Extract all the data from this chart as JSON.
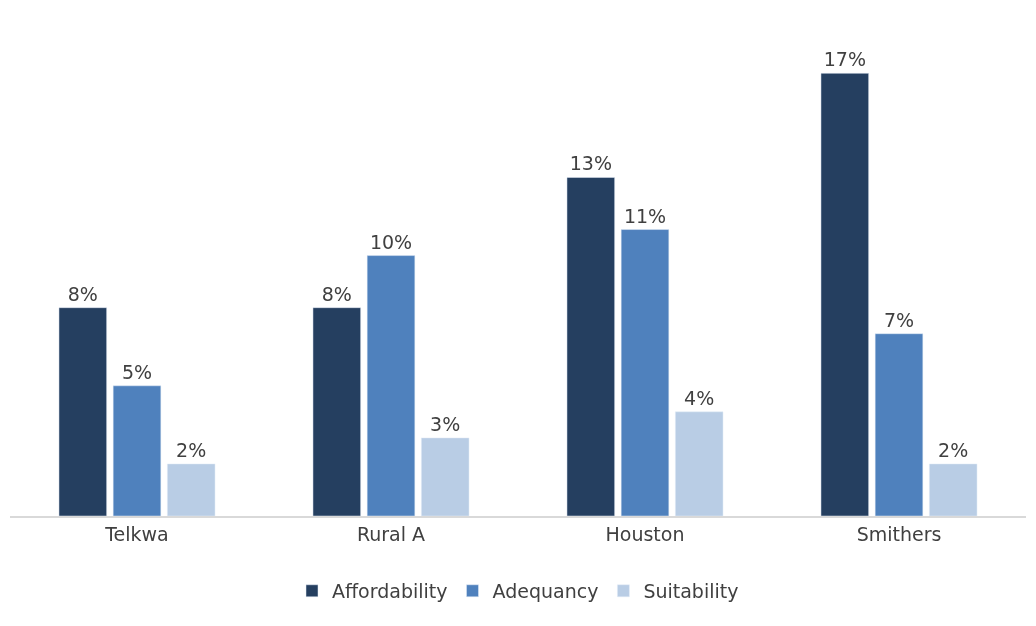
{
  "chart_data": {
    "type": "bar",
    "categories": [
      "Telkwa",
      "Rural A",
      "Houston",
      "Smithers"
    ],
    "series": [
      {
        "name": "Affordability",
        "color": "#253f60",
        "values": [
          8,
          8,
          13,
          17
        ],
        "value_labels": [
          "8%",
          "8%",
          "13%",
          "17%"
        ]
      },
      {
        "name": "Adequancy",
        "color": "#4f81bd",
        "values": [
          5,
          10,
          11,
          7
        ],
        "value_labels": [
          "5%",
          "10%",
          "11%",
          "7%"
        ]
      },
      {
        "name": "Suitability",
        "color": "#b9cde5",
        "values": [
          2,
          3,
          4,
          2
        ],
        "value_labels": [
          "2%",
          "3%",
          "4%",
          "2%"
        ]
      }
    ],
    "legend": "bottom",
    "tick_labels": "x"
  }
}
